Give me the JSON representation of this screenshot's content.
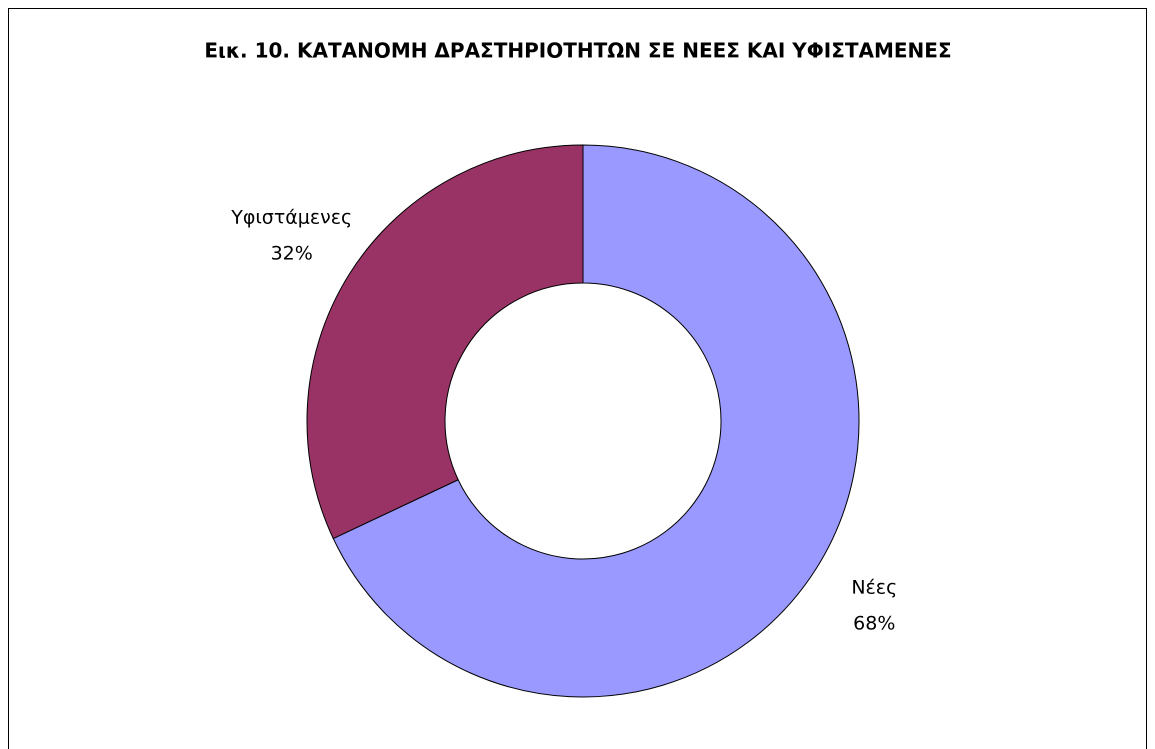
{
  "chart_data": {
    "type": "donut",
    "title": "Εικ. 10. ΚΑΤΑΝΟΜΗ ΔΡΑΣΤΗΡΙΟΤΗΤΩΝ ΣΕ ΝΕΕΣ ΚΑΙ ΥΦΙΣΤΑΜΕΝΕΣ",
    "categories": [
      "Νέες",
      "Υφιστάμενες"
    ],
    "values": [
      68,
      32
    ],
    "value_labels": [
      "68%",
      "32%"
    ],
    "colors": [
      "#9999ff",
      "#993366"
    ]
  }
}
